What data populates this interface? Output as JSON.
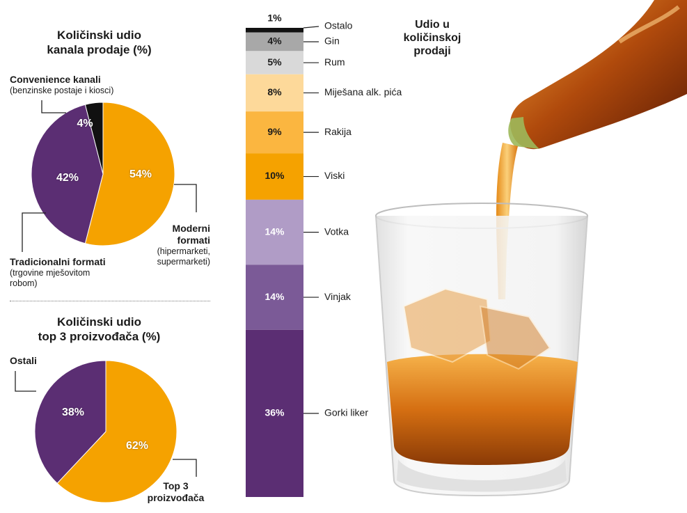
{
  "colors": {
    "purple_dark": "#5b2e73",
    "purple_mid": "#7b5a97",
    "purple_light": "#b09cc6",
    "orange": "#f5a200",
    "orange_mid": "#fbb640",
    "orange_light": "#fdd99a",
    "grey_light": "#d9d9d9",
    "grey_mid": "#a8a8a8",
    "black": "#111111"
  },
  "chart_data": [
    {
      "type": "pie",
      "title": "Količinski udio kanala prodaje (%)",
      "title_lines": [
        "Količinski udio",
        "kanala prodaje (%)"
      ],
      "slices": [
        {
          "label": "Moderni formati",
          "label_lines": [
            "Moderni",
            "formati"
          ],
          "note_lines": [
            "(hipermarketi,",
            "supermarketi)"
          ],
          "value": 54,
          "value_label": "54%"
        },
        {
          "label": "Tradicionalni formati",
          "label_lines": [
            "Tradicionalni formati"
          ],
          "note_lines": [
            "(trgovine mješovitom",
            "robom)"
          ],
          "value": 42,
          "value_label": "42%"
        },
        {
          "label": "Convenience kanali",
          "label_lines": [
            "Convenience kanali"
          ],
          "note_lines": [
            "(benzinske postaje i kiosci)"
          ],
          "value": 4,
          "value_label": "4%"
        }
      ]
    },
    {
      "type": "pie",
      "title": "Količinski udio top 3 proizvođača (%)",
      "title_lines": [
        "Količinski udio",
        "top 3 proizvođača (%)"
      ],
      "slices": [
        {
          "label": "Top 3 proizvođača",
          "label_lines": [
            "Top 3",
            "proizvođača"
          ],
          "value": 62,
          "value_label": "62%"
        },
        {
          "label": "Ostali",
          "label_lines": [
            "Ostali"
          ],
          "value": 38,
          "value_label": "38%"
        }
      ]
    },
    {
      "type": "bar",
      "stacked": true,
      "title": "Udio u količinskoj prodaji",
      "title_lines": [
        "Udio u",
        "količinskoj",
        "prodaji"
      ],
      "categories": [
        "Ostalo",
        "Gin",
        "Rum",
        "Miješana alk. pića",
        "Rakija",
        "Viski",
        "Votka",
        "Vinjak",
        "Gorki liker"
      ],
      "values": [
        1,
        4,
        5,
        8,
        9,
        10,
        14,
        14,
        36
      ],
      "value_labels": [
        "1%",
        "4%",
        "5%",
        "8%",
        "9%",
        "10%",
        "14%",
        "14%",
        "36%"
      ]
    }
  ]
}
